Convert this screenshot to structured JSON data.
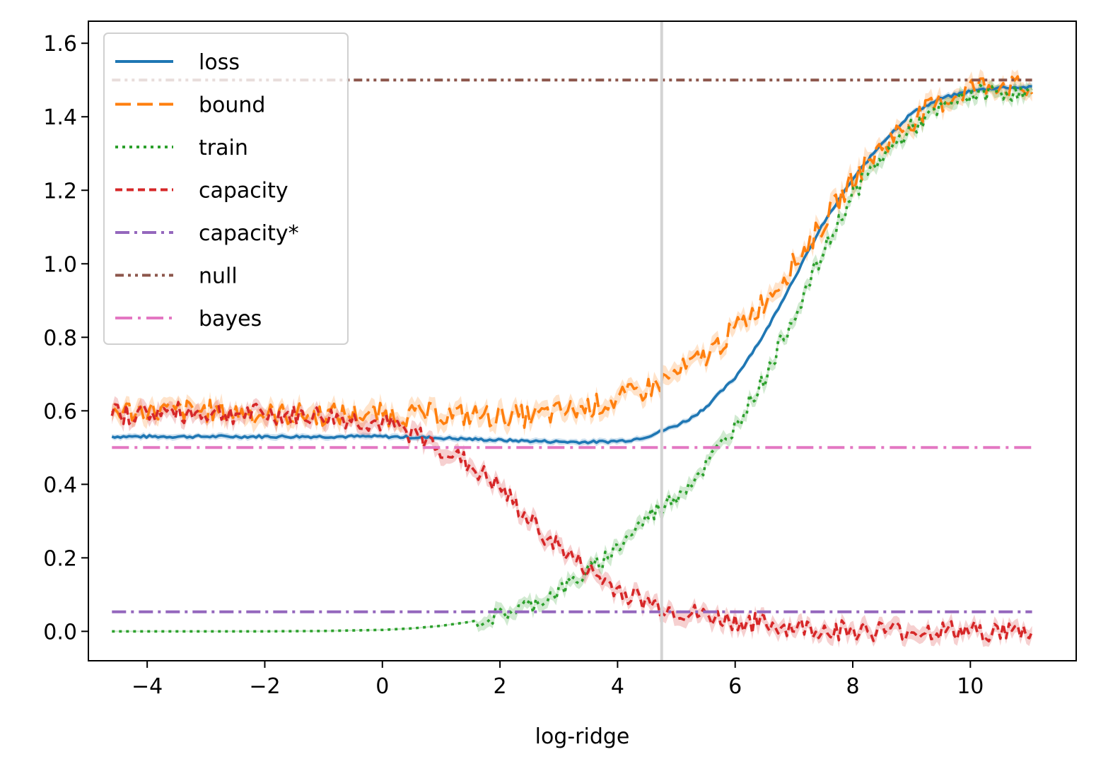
{
  "chart_data": {
    "type": "line",
    "title": "",
    "xlabel": "log-ridge",
    "ylabel": "",
    "xlim": [
      -5.0,
      11.8
    ],
    "ylim": [
      -0.08,
      1.66
    ],
    "xticks": [
      -4,
      -2,
      0,
      2,
      4,
      6,
      8,
      10
    ],
    "xtick_labels": [
      "−4",
      "−2",
      "0",
      "2",
      "4",
      "6",
      "8",
      "10"
    ],
    "yticks": [
      0.0,
      0.2,
      0.4,
      0.6,
      0.8,
      1.0,
      1.2,
      1.4,
      1.6
    ],
    "ytick_labels": [
      "0.0",
      "0.2",
      "0.4",
      "0.6",
      "0.8",
      "1.0",
      "1.2",
      "1.4",
      "1.6"
    ],
    "grid": false,
    "legend_position": "top-left",
    "vline": {
      "x": 4.75,
      "color": "#d3d3d3"
    },
    "series": [
      {
        "name": "loss",
        "color": "#1f77b4",
        "dash": "solid",
        "x": [
          -4.6,
          -4,
          -3,
          -2,
          -1,
          0,
          0.5,
          1,
          1.5,
          2,
          2.5,
          3,
          3.4,
          3.8,
          4.2,
          4.5,
          4.75,
          5,
          5.25,
          5.5,
          6,
          6.5,
          7,
          7.5,
          8,
          8.5,
          9,
          9.5,
          10,
          10.5,
          11.05
        ],
        "y": [
          0.53,
          0.53,
          0.53,
          0.53,
          0.53,
          0.53,
          0.528,
          0.526,
          0.523,
          0.52,
          0.518,
          0.516,
          0.515,
          0.516,
          0.52,
          0.53,
          0.545,
          0.56,
          0.58,
          0.61,
          0.69,
          0.81,
          0.96,
          1.11,
          1.23,
          1.33,
          1.41,
          1.45,
          1.47,
          1.48,
          1.48
        ],
        "band": 0.006
      },
      {
        "name": "bound",
        "color": "#ff7f0e",
        "dash": "dashed",
        "x": [
          -4.6,
          -4,
          -3,
          -2,
          -1,
          0,
          1,
          2,
          2.5,
          3,
          3.5,
          4,
          4.5,
          5,
          5.5,
          6,
          6.5,
          7,
          7.5,
          8,
          8.5,
          9,
          9.5,
          10,
          10.5,
          11.05
        ],
        "y": [
          0.6,
          0.6,
          0.6,
          0.59,
          0.59,
          0.59,
          0.59,
          0.585,
          0.585,
          0.595,
          0.61,
          0.63,
          0.66,
          0.7,
          0.75,
          0.82,
          0.9,
          1.0,
          1.11,
          1.23,
          1.32,
          1.39,
          1.44,
          1.48,
          1.49,
          1.47
        ],
        "band": 0.02
      },
      {
        "name": "train",
        "color": "#2ca02c",
        "dash": "dotted",
        "x": [
          -4.6,
          -3,
          -2,
          -1,
          0,
          0.5,
          1,
          1.5,
          2,
          2.5,
          3,
          3.5,
          4,
          4.5,
          5,
          5.5,
          6,
          6.5,
          7,
          7.5,
          8,
          8.5,
          9,
          9.5,
          10,
          10.5,
          11.05
        ],
        "y": [
          0.0,
          0.0,
          0.0,
          0.001,
          0.004,
          0.008,
          0.015,
          0.026,
          0.045,
          0.07,
          0.11,
          0.16,
          0.23,
          0.31,
          0.37,
          0.45,
          0.56,
          0.69,
          0.86,
          1.03,
          1.19,
          1.29,
          1.37,
          1.42,
          1.46,
          1.47,
          1.46
        ],
        "band": 0.015
      },
      {
        "name": "capacity",
        "color": "#d62728",
        "dash": "dense-dash",
        "x": [
          -4.6,
          -4,
          -3,
          -2,
          -1,
          0,
          0.5,
          1,
          1.5,
          2,
          2.5,
          3,
          3.5,
          4,
          4.5,
          5,
          5.5,
          6,
          6.5,
          7,
          7.5,
          8,
          8.5,
          9,
          10,
          11.05
        ],
        "y": [
          0.59,
          0.595,
          0.595,
          0.59,
          0.585,
          0.565,
          0.54,
          0.5,
          0.45,
          0.39,
          0.3,
          0.23,
          0.165,
          0.115,
          0.08,
          0.055,
          0.04,
          0.028,
          0.018,
          0.011,
          0.006,
          0.003,
          0.002,
          0.001,
          0.0,
          0.0
        ],
        "band": 0.018
      },
      {
        "name": "capacity*",
        "color": "#9467bd",
        "dash": "dashdot",
        "x": [
          -4.6,
          11.05
        ],
        "y": [
          0.053,
          0.053
        ],
        "band": 0
      },
      {
        "name": "null",
        "color": "#8c564b",
        "dash": "dashdotdot",
        "x": [
          -4.6,
          11.05
        ],
        "y": [
          1.5,
          1.5
        ],
        "band": 0
      },
      {
        "name": "bayes",
        "color": "#e377c2",
        "dash": "long-dashdot",
        "x": [
          -4.6,
          11.05
        ],
        "y": [
          0.5,
          0.5
        ],
        "band": 0
      }
    ]
  }
}
